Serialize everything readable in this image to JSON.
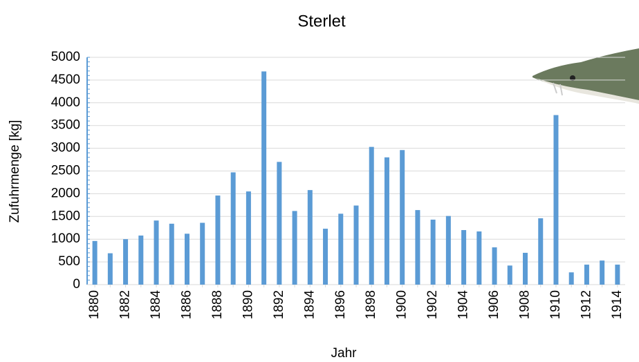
{
  "chart_data": {
    "type": "bar",
    "title": "Sterlet",
    "x_label": "Jahr",
    "y_label": "Zufuhrmenge [kg]",
    "categories": [
      "1880",
      null,
      "1882",
      null,
      "1884",
      null,
      "1886",
      null,
      "1888",
      null,
      "1890",
      null,
      "1892",
      null,
      "1894",
      null,
      "1896",
      null,
      "1898",
      null,
      "1900",
      null,
      "1902",
      null,
      "1904",
      null,
      "1906",
      null,
      "1908",
      null,
      "1910",
      null,
      "1912",
      null,
      "1914"
    ],
    "values": [
      960,
      690,
      1000,
      1080,
      1410,
      1340,
      1120,
      1360,
      1960,
      2470,
      2050,
      4690,
      2700,
      1620,
      2080,
      1230,
      1560,
      1740,
      3030,
      2800,
      2960,
      1640,
      1430,
      1510,
      1200,
      1170,
      820,
      420,
      700,
      1460,
      3730,
      270,
      440,
      530,
      440
    ],
    "color": "#5b9bd5",
    "ylim": [
      0,
      5000
    ],
    "yticks": [
      0,
      500,
      1000,
      1500,
      2000,
      2500,
      3000,
      3500,
      4000,
      4500,
      5000
    ],
    "grid": true
  }
}
